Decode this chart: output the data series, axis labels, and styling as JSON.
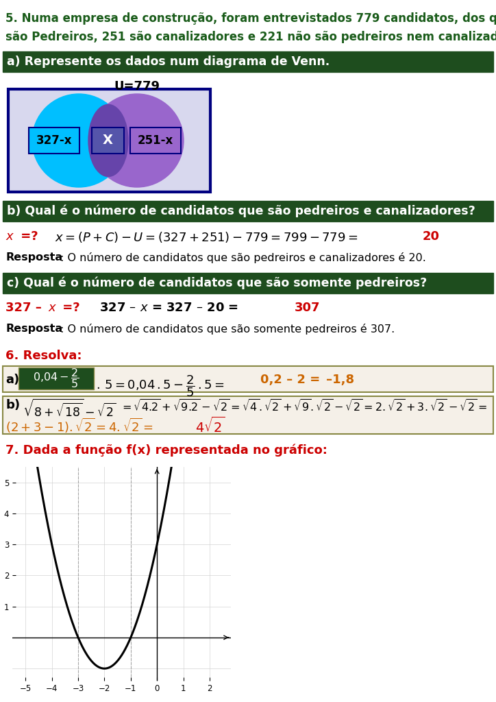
{
  "dark_green": "#1a5c1a",
  "red_color": "#cc0000",
  "orange_color": "#cc6600",
  "black": "#000000",
  "white": "#ffffff",
  "bg_white": "#ffffff",
  "header_bg": "#1e4d1e",
  "cyan_circle": "#00bfff",
  "purple_circle": "#9966cc",
  "overlap_color": "#6644aa",
  "venn_border": "#000080",
  "venn_bg": "#d8d8ee",
  "box6_bg": "#f5f0e8",
  "box6_border": "#888844"
}
